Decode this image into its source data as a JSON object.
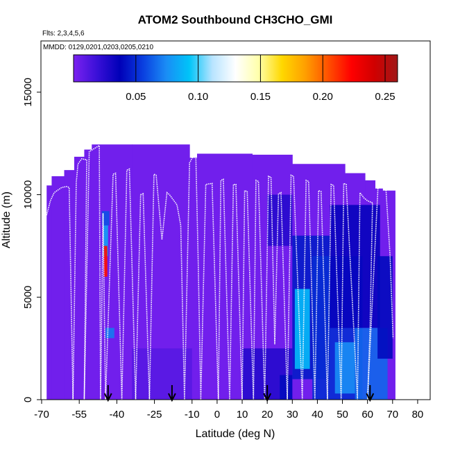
{
  "chart_data": {
    "type": "heatmap",
    "title": "ATOM2 Southbound CH3CHO_GMI",
    "flights_label": "Flts: 2,3,4,5,6",
    "dates_label": "MMDD: 0129,0201,0203,0205,0210",
    "xlabel": "Latitude (deg N)",
    "ylabel": "Altitude (m)",
    "xlim": [
      -70,
      85
    ],
    "ylim": [
      0,
      17500
    ],
    "xticks": [
      -70,
      -55,
      -40,
      -25,
      -10,
      0,
      10,
      20,
      30,
      40,
      50,
      60,
      70,
      80
    ],
    "xtick_labels": [
      "-70",
      "-55",
      "-40",
      "-25",
      "-10",
      "0",
      "10",
      "20",
      "30",
      "40",
      "50",
      "60",
      "70",
      "80"
    ],
    "yticks": [
      0,
      5000,
      10000,
      15000
    ],
    "ytick_labels": [
      "0",
      "5000",
      "10000",
      "15000"
    ],
    "colorbar": {
      "min": 0.0,
      "max": 0.26,
      "ticks": [
        0.05,
        0.1,
        0.15,
        0.2,
        0.25
      ],
      "tick_labels": [
        "0.05",
        "0.10",
        "0.15",
        "0.20",
        "0.25"
      ],
      "colors": [
        "#7b22f0",
        "#3a10d8",
        "#0000b8",
        "#0a3fe0",
        "#1a8cf5",
        "#00c4f8",
        "#b8e4ff",
        "#ffffff",
        "#ffffaa",
        "#ffd800",
        "#ffa000",
        "#ff5000",
        "#ff0000",
        "#d00000",
        "#a01818"
      ]
    },
    "background_value": 0.003,
    "columns": [
      {
        "lat": [
          -68,
          -66
        ],
        "top": 10450
      },
      {
        "lat": [
          -66,
          -61
        ],
        "top": 10900
      },
      {
        "lat": [
          -61,
          -57
        ],
        "top": 11200
      },
      {
        "lat": [
          -57,
          -53
        ],
        "top": 11850
      },
      {
        "lat": [
          -53,
          -50
        ],
        "top": 12200
      },
      {
        "lat": [
          -50,
          -34
        ],
        "top": 12450
      },
      {
        "lat": [
          -34,
          -11
        ],
        "top": 12450
      },
      {
        "lat": [
          -11,
          -8
        ],
        "top": 11800
      },
      {
        "lat": [
          -8,
          14
        ],
        "top": 12000
      },
      {
        "lat": [
          14,
          30
        ],
        "top": 11950
      },
      {
        "lat": [
          30,
          51
        ],
        "top": 11500
      },
      {
        "lat": [
          51,
          59
        ],
        "top": 11050
      },
      {
        "lat": [
          59,
          63
        ],
        "top": 10700
      },
      {
        "lat": [
          63,
          66
        ],
        "top": 10300
      },
      {
        "lat": [
          66,
          71
        ],
        "top": 10200
      }
    ],
    "patches": [
      {
        "lat": [
          -46,
          -43
        ],
        "alt": [
          8500,
          9200
        ],
        "value": 0.06
      },
      {
        "lat": [
          -45.5,
          -43.5
        ],
        "alt": [
          7000,
          8500
        ],
        "value": 0.08
      },
      {
        "lat": [
          -45.2,
          -43.8
        ],
        "alt": [
          6000,
          7500
        ],
        "value": 0.22
      },
      {
        "lat": [
          -44.5,
          -41
        ],
        "alt": [
          3000,
          3500
        ],
        "value": 0.07
      },
      {
        "lat": [
          -34,
          -10
        ],
        "alt": [
          0,
          2500
        ],
        "value": 0.01
      },
      {
        "lat": [
          10,
          30
        ],
        "alt": [
          0,
          2500
        ],
        "value": 0.025
      },
      {
        "lat": [
          20,
          30
        ],
        "alt": [
          7500,
          10000
        ],
        "value": 0.025
      },
      {
        "lat": [
          25,
          30
        ],
        "alt": [
          0,
          1200
        ],
        "value": 0.04
      },
      {
        "lat": [
          30,
          45
        ],
        "alt": [
          1000,
          8000
        ],
        "value": 0.045
      },
      {
        "lat": [
          31,
          37
        ],
        "alt": [
          1500,
          5400
        ],
        "value": 0.09
      },
      {
        "lat": [
          38,
          58
        ],
        "alt": [
          0,
          7000
        ],
        "value": 0.05
      },
      {
        "lat": [
          45,
          65
        ],
        "alt": [
          3500,
          9500
        ],
        "value": 0.035
      },
      {
        "lat": [
          47,
          55
        ],
        "alt": [
          300,
          2800
        ],
        "value": 0.075
      },
      {
        "lat": [
          55,
          68
        ],
        "alt": [
          0,
          3500
        ],
        "value": 0.065
      },
      {
        "lat": [
          64,
          70
        ],
        "alt": [
          2000,
          7000
        ],
        "value": 0.04
      }
    ],
    "flight_track": [
      [
        -68,
        9000
      ],
      [
        -66.5,
        9700
      ],
      [
        -65,
        10100
      ],
      [
        -62,
        10350
      ],
      [
        -60,
        10400
      ],
      [
        -59,
        10350
      ],
      [
        -57.5,
        0
      ],
      [
        -56.2,
        10600
      ],
      [
        -55.5,
        11500
      ],
      [
        -54,
        11750
      ],
      [
        -52,
        11700
      ],
      [
        -53,
        0
      ],
      [
        -51,
        12100
      ],
      [
        -49,
        12250
      ],
      [
        -47,
        12400
      ],
      [
        -46.5,
        0
      ],
      [
        -45.5,
        9100
      ],
      [
        -44.5,
        0
      ],
      [
        -41.5,
        11000
      ],
      [
        -40.5,
        11050
      ],
      [
        -38,
        0
      ],
      [
        -36,
        11200
      ],
      [
        -35,
        11250
      ],
      [
        -32.5,
        0
      ],
      [
        -30.5,
        10000
      ],
      [
        -29.5,
        10050
      ],
      [
        -27,
        0
      ],
      [
        -25.2,
        11000
      ],
      [
        -24.3,
        10950
      ],
      [
        -22,
        7800
      ],
      [
        -20,
        10100
      ],
      [
        -19,
        10000
      ],
      [
        -16,
        9500
      ],
      [
        -14.5,
        8500
      ],
      [
        -13,
        0
      ],
      [
        -11,
        11550
      ],
      [
        -9.5,
        11900
      ],
      [
        -8.5,
        11950
      ],
      [
        -7.5,
        6500
      ],
      [
        -6.5,
        0
      ],
      [
        -4.5,
        10500
      ],
      [
        -2,
        10550
      ],
      [
        0.5,
        0
      ],
      [
        1.5,
        10700
      ],
      [
        2.5,
        10750
      ],
      [
        5,
        0
      ],
      [
        6.5,
        10500
      ],
      [
        7.5,
        10500
      ],
      [
        10,
        0
      ],
      [
        11,
        10200
      ],
      [
        12,
        10150
      ],
      [
        14.5,
        0
      ],
      [
        15.5,
        10700
      ],
      [
        16.5,
        10650
      ],
      [
        19,
        0
      ],
      [
        20.5,
        10900
      ],
      [
        21.5,
        10850
      ],
      [
        23,
        2700
      ],
      [
        24.5,
        10050
      ],
      [
        25.5,
        10100
      ],
      [
        28,
        0
      ],
      [
        29.5,
        10950
      ],
      [
        30.5,
        10900
      ],
      [
        34,
        0
      ],
      [
        35.5,
        10700
      ],
      [
        36.5,
        10650
      ],
      [
        39,
        0
      ],
      [
        40.5,
        10200
      ],
      [
        41.5,
        10150
      ],
      [
        44,
        0
      ],
      [
        45.5,
        10500
      ],
      [
        46.5,
        10450
      ],
      [
        49.5,
        0
      ],
      [
        50.5,
        10550
      ],
      [
        51.5,
        10500
      ],
      [
        56,
        0
      ],
      [
        57,
        10100
      ],
      [
        58.5,
        9850
      ],
      [
        60,
        9700
      ],
      [
        62,
        9600
      ],
      [
        61,
        3500
      ],
      [
        60,
        0
      ],
      [
        63,
        7500
      ],
      [
        64.5,
        11100
      ],
      [
        65.5,
        11050
      ],
      [
        67,
        10950
      ],
      [
        69,
        7000
      ],
      [
        70.2,
        3000
      ]
    ],
    "marker_lats": [
      -43.5,
      -18,
      20,
      61
    ]
  }
}
